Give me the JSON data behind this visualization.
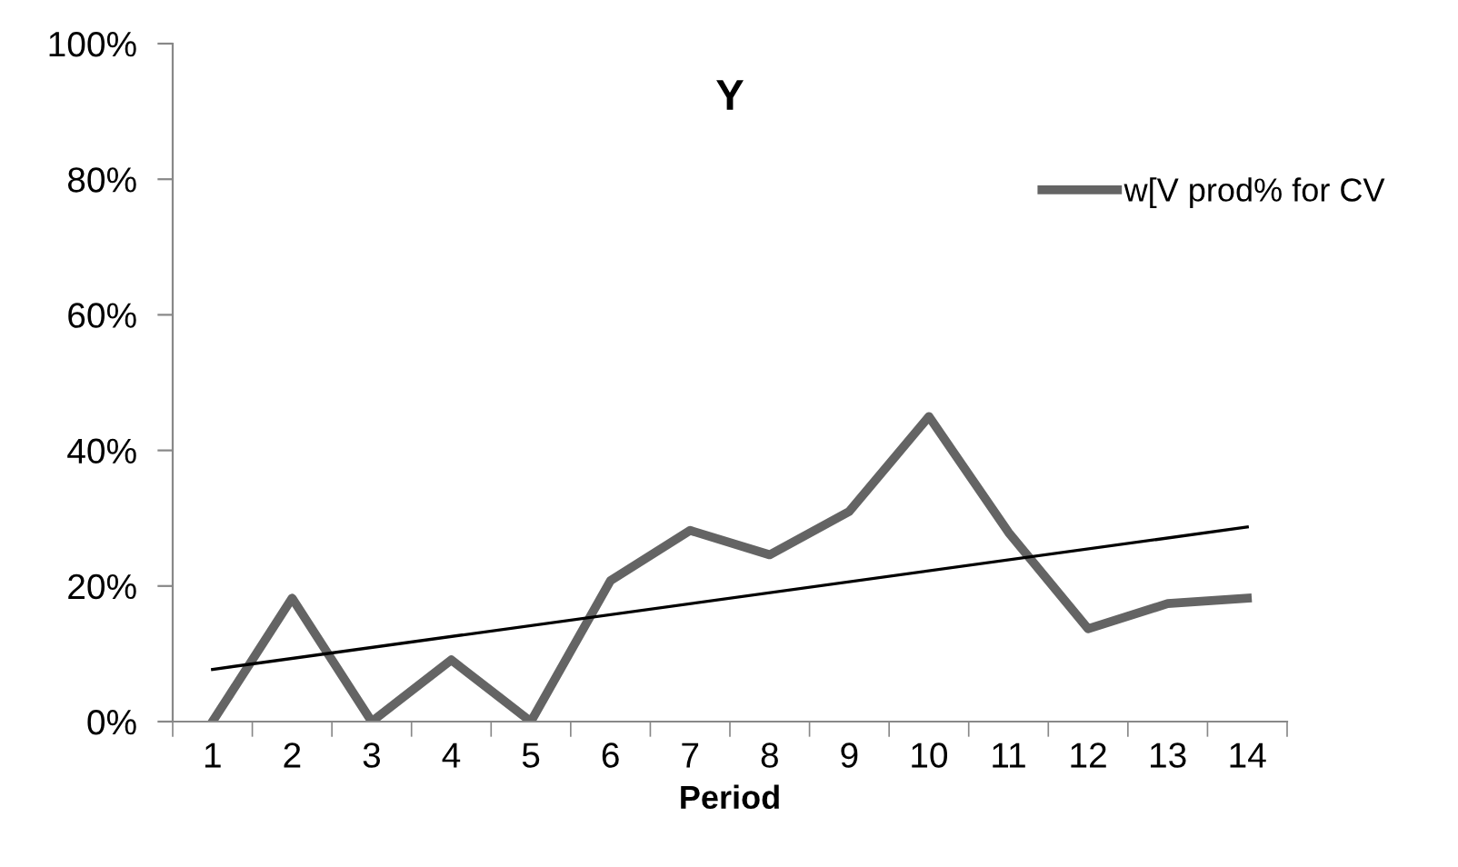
{
  "chart_data": {
    "type": "line",
    "title": "Y",
    "xlabel": "Period",
    "categories": [
      "1",
      "2",
      "3",
      "4",
      "5",
      "6",
      "7",
      "8",
      "9",
      "10",
      "11",
      "12",
      "13",
      "14"
    ],
    "series": [
      {
        "name": "w[V prod% for CV",
        "color": "#646464",
        "values": [
          0,
          18.2,
          0,
          9.1,
          0,
          20.8,
          28.2,
          24.6,
          31,
          45,
          27.9,
          13.7,
          17.4,
          18.2
        ]
      },
      {
        "type": "line",
        "color": "#000000",
        "x": [
          "1",
          "14"
        ],
        "values": [
          7.7,
          28.7
        ]
      }
    ],
    "ylim": [
      0,
      100
    ],
    "yticks": [
      {
        "value": 0,
        "label": "0%"
      },
      {
        "value": 20,
        "label": "20%"
      },
      {
        "value": 40,
        "label": "40%"
      },
      {
        "value": 60,
        "label": "60%"
      },
      {
        "value": 80,
        "label": "80%"
      },
      {
        "value": 100,
        "label": "100%"
      }
    ],
    "grid": false,
    "legend": "right",
    "marker": "none",
    "line_style": "solid"
  }
}
